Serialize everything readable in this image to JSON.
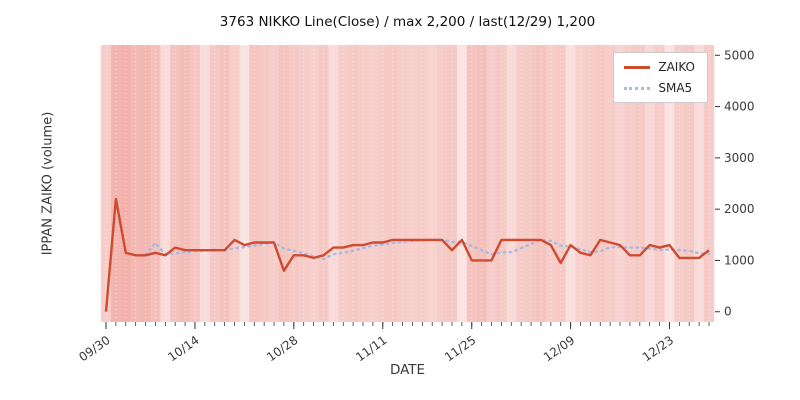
{
  "window": {
    "kind": "stock-volume-chart"
  },
  "header": {
    "title": "3763 NIKKO Line(Close) / max 2,200 / last(12/29) 1,200"
  },
  "axes": {
    "x_label": "DATE",
    "y_label": "IPPAN ZAIKO (volume)"
  },
  "legend": {
    "items": [
      {
        "label": "ZAIKO",
        "color": "#cf4a2e",
        "style": "solid"
      },
      {
        "label": "SMA5",
        "color": "#a8badf",
        "style": "dotted"
      }
    ]
  },
  "colors": {
    "zaiko_line": "#cf4a2e",
    "sma5_line": "#a8badf",
    "band_red": "#e2574a",
    "plot_base": "#fdf4f3",
    "tick_text": "#3a3a3a"
  },
  "chart_data": {
    "type": "line",
    "title": "3763 NIKKO Line(Close) / max 2,200 / last(12/29) 1,200",
    "xlabel": "DATE",
    "ylabel": "IPPAN ZAIKO (volume)",
    "ylim": [
      0,
      5000
    ],
    "yticks": [
      0,
      1000,
      2000,
      3000,
      4000,
      5000
    ],
    "grid": false,
    "legend_position": "upper right",
    "max_value": 2200,
    "last": {
      "date": "12/29",
      "value": 1200
    },
    "x_dates": [
      "09/30",
      "10/03",
      "10/04",
      "10/05",
      "10/06",
      "10/07",
      "10/11",
      "10/12",
      "10/13",
      "10/14",
      "10/17",
      "10/18",
      "10/19",
      "10/20",
      "10/21",
      "10/24",
      "10/25",
      "10/26",
      "10/27",
      "10/28",
      "10/31",
      "11/01",
      "11/02",
      "11/04",
      "11/07",
      "11/08",
      "11/09",
      "11/10",
      "11/11",
      "11/14",
      "11/15",
      "11/16",
      "11/17",
      "11/18",
      "11/21",
      "11/22",
      "11/24",
      "11/25",
      "11/28",
      "11/29",
      "11/30",
      "12/01",
      "12/02",
      "12/05",
      "12/06",
      "12/07",
      "12/08",
      "12/09",
      "12/12",
      "12/13",
      "12/14",
      "12/15",
      "12/16",
      "12/19",
      "12/20",
      "12/21",
      "12/22",
      "12/23",
      "12/26",
      "12/27",
      "12/28",
      "12/29"
    ],
    "xtick_labels": [
      "09/30",
      "10/14",
      "10/28",
      "11/11",
      "11/25",
      "12/09",
      "12/23"
    ],
    "xtick_indices": [
      0,
      9,
      19,
      28,
      37,
      47,
      57
    ],
    "series": [
      {
        "name": "ZAIKO",
        "color": "#cf4a2e",
        "style": "solid",
        "values": [
          0,
          2200,
          1150,
          1100,
          1100,
          1150,
          1100,
          1250,
          1200,
          1200,
          1200,
          1200,
          1200,
          1400,
          1300,
          1350,
          1350,
          1350,
          800,
          1100,
          1100,
          1050,
          1100,
          1250,
          1250,
          1300,
          1300,
          1350,
          1350,
          1400,
          1400,
          1400,
          1400,
          1400,
          1400,
          1200,
          1400,
          1000,
          1000,
          1000,
          1400,
          1400,
          1400,
          1400,
          1400,
          1300,
          950,
          1300,
          1150,
          1100,
          1400,
          1350,
          1300,
          1100,
          1100,
          1300,
          1250,
          1300,
          1050,
          1050,
          1050,
          1200
        ]
      },
      {
        "name": "SMA5",
        "color": "#a8badf",
        "style": "dotted",
        "derived": "5-period simple moving average of ZAIKO"
      }
    ],
    "background_bands": {
      "color": "#e2574a",
      "alphas": [
        0.5,
        0.8,
        0.85,
        0.75,
        0.78,
        0.65,
        0.3,
        0.62,
        0.7,
        0.58,
        0.28,
        0.55,
        0.62,
        0.5,
        0.22,
        0.58,
        0.55,
        0.5,
        0.6,
        0.55,
        0.5,
        0.45,
        0.55,
        0.3,
        0.5,
        0.55,
        0.5,
        0.45,
        0.52,
        0.55,
        0.5,
        0.45,
        0.5,
        0.42,
        0.52,
        0.55,
        0.22,
        0.6,
        0.65,
        0.5,
        0.55,
        0.32,
        0.52,
        0.55,
        0.6,
        0.5,
        0.55,
        0.25,
        0.45,
        0.5,
        0.55,
        0.5,
        0.4,
        0.5,
        0.55,
        0.35,
        0.5,
        0.22,
        0.5,
        0.55,
        0.3,
        0.52
      ]
    }
  }
}
